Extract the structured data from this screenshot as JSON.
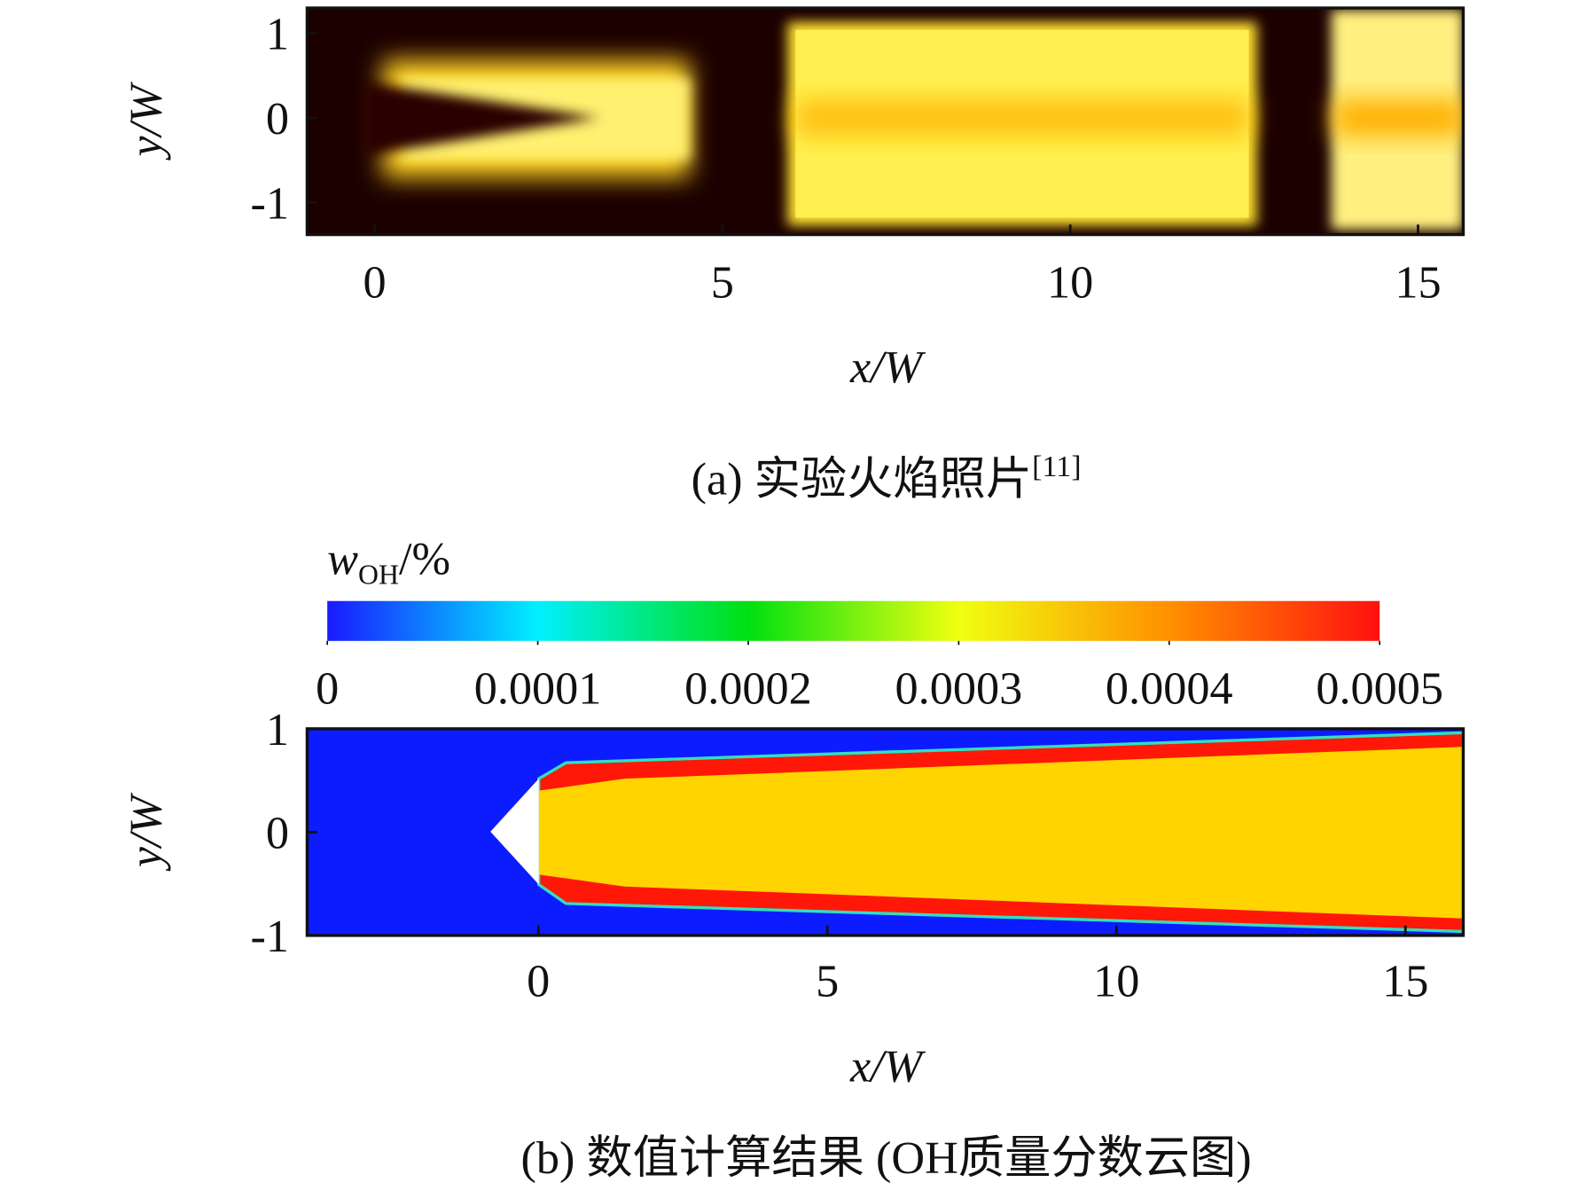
{
  "chart_data": [
    {
      "type": "heatmap",
      "caption": "(a) 实验火焰照片",
      "caption_ref": "[11]",
      "xlabel": "x/W",
      "ylabel": "y/W",
      "xlim": [
        -0.97,
        15.65
      ],
      "ylim": [
        -1.38,
        1.3
      ],
      "xticks": [
        0,
        5,
        10,
        15
      ],
      "yticks": [
        -1,
        0,
        1
      ]
    },
    {
      "type": "heatmap",
      "caption": "(b) 数值计算结果 (OH质量分数云图)",
      "xlabel": "x/W",
      "ylabel": "y/W",
      "xlim": [
        -4,
        16
      ],
      "ylim": [
        -1,
        1
      ],
      "xticks": [
        0,
        5,
        10,
        15
      ],
      "yticks": [
        -1,
        0,
        1
      ],
      "colorbar": {
        "label_symbol": "w",
        "label_subscript": "OH",
        "label_unit": "/%",
        "lim": [
          0,
          0.0005
        ],
        "ticks": [
          0,
          0.0001,
          0.0002,
          0.0003,
          0.0004,
          0.0005
        ],
        "colormap": [
          "#1a1aff",
          "#00f0ff",
          "#00e010",
          "#f0ff10",
          "#ff9000",
          "#ff1010"
        ]
      }
    }
  ]
}
